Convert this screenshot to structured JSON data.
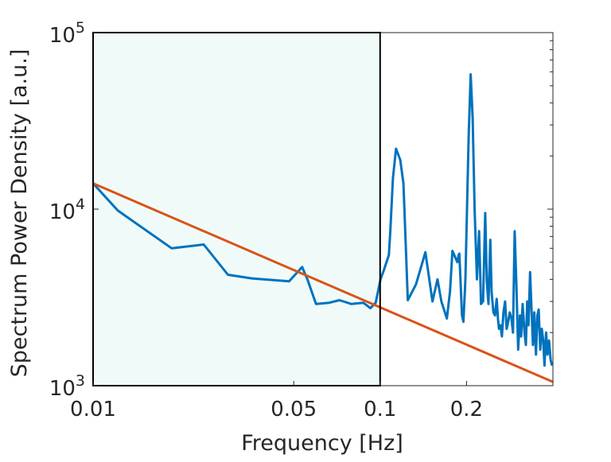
{
  "chart_data": {
    "type": "line",
    "title": "",
    "xlabel": "Frequency [Hz]",
    "ylabel": "Spectrum Power Density [a.u.]",
    "x_scale": "log",
    "y_scale": "log",
    "xlim": [
      0.01,
      0.4
    ],
    "ylim": [
      1000,
      100000
    ],
    "x_ticks": [
      {
        "value": 0.01,
        "label": "0.01"
      },
      {
        "value": 0.05,
        "label": "0.05"
      },
      {
        "value": 0.1,
        "label": "0.1"
      },
      {
        "value": 0.2,
        "label": "0.2"
      }
    ],
    "y_ticks": [
      {
        "value": 1000,
        "base": "10",
        "exp": "3"
      },
      {
        "value": 10000,
        "base": "10",
        "exp": "4"
      },
      {
        "value": 100000,
        "base": "10",
        "exp": "5"
      }
    ],
    "grid": false,
    "shaded_region": {
      "x_start": 0.01,
      "x_end": 0.1,
      "color": "#f0fbf9"
    },
    "series": [
      {
        "color": "#0072bd",
        "x": [
          0.01,
          0.0122,
          0.0188,
          0.0243,
          0.0295,
          0.0357,
          0.0482,
          0.0535,
          0.056,
          0.0598,
          0.0665,
          0.0722,
          0.0795,
          0.0874,
          0.0925,
          0.0965,
          0.1003,
          0.103,
          0.1073,
          0.1085,
          0.1108,
          0.1136,
          0.1175,
          0.1206,
          0.1249,
          0.1334,
          0.1438,
          0.1522,
          0.1584,
          0.1635,
          0.1708,
          0.1752,
          0.1787,
          0.1858,
          0.1878,
          0.1889,
          0.1929,
          0.1951,
          0.1982,
          0.2033,
          0.2067,
          0.2101,
          0.2134,
          0.2174,
          0.2213,
          0.2246,
          0.2284,
          0.2324,
          0.2354,
          0.2386,
          0.2421,
          0.2445,
          0.2482,
          0.2513,
          0.2548,
          0.2574,
          0.2595,
          0.2625,
          0.2657,
          0.2689,
          0.2726,
          0.2759,
          0.2794,
          0.2828,
          0.2869,
          0.2904,
          0.2943,
          0.2985,
          0.3026,
          0.3071,
          0.3101,
          0.3136,
          0.3185,
          0.3219,
          0.3255,
          0.3288,
          0.333,
          0.3369,
          0.3407,
          0.3446,
          0.3491,
          0.3531,
          0.3568,
          0.3614,
          0.3659,
          0.3701,
          0.3738,
          0.3787,
          0.3831,
          0.3878,
          0.3926,
          0.3971
        ],
        "y": [
          14000,
          9800,
          6000,
          6300,
          4250,
          4050,
          3900,
          4700,
          3950,
          2900,
          2950,
          3050,
          2900,
          2950,
          2750,
          2950,
          4000,
          4500,
          5500,
          7500,
          15000,
          22000,
          19000,
          14000,
          3050,
          3750,
          5700,
          3000,
          4000,
          3000,
          2400,
          3400,
          5800,
          5000,
          5500,
          5600,
          2500,
          2300,
          4000,
          25000,
          58000,
          33000,
          9900,
          4000,
          7500,
          2900,
          3000,
          9500,
          3900,
          2900,
          6700,
          3400,
          2600,
          2500,
          3100,
          2400,
          2100,
          2200,
          1900,
          2600,
          3000,
          2100,
          2300,
          2600,
          2400,
          2000,
          7500,
          3700,
          1600,
          2500,
          1900,
          2900,
          2000,
          1700,
          3000,
          2200,
          4400,
          2700,
          1700,
          2600,
          1500,
          2500,
          2700,
          1600,
          2100,
          1800,
          1300,
          2000,
          1500,
          1800,
          1400,
          1300
        ]
      },
      {
        "color": "#d95319",
        "x": [
          0.01,
          0.4
        ],
        "y": [
          14000,
          1050
        ]
      }
    ]
  }
}
